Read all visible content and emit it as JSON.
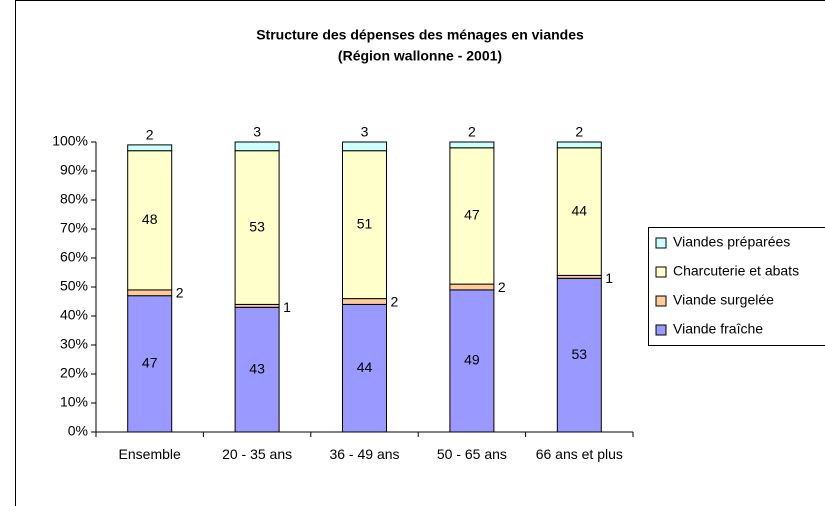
{
  "chart_data": {
    "type": "stacked_bar",
    "title": "Structure des dépenses des ménages en viandes",
    "subtitle": "(Région wallonne - 2001)",
    "categories": [
      "Ensemble",
      "20 - 35 ans",
      "36 - 49 ans",
      "50 - 65 ans",
      "66 ans et plus"
    ],
    "series": [
      {
        "name": "Viande fraîche",
        "color": "#9999ff",
        "values": [
          47,
          43,
          44,
          49,
          53
        ]
      },
      {
        "name": "Viande surgelée",
        "color": "#ffcc99",
        "values": [
          2,
          1,
          2,
          2,
          1
        ]
      },
      {
        "name": "Charcuterie et abats",
        "color": "#ffffcc",
        "values": [
          48,
          53,
          51,
          47,
          44
        ]
      },
      {
        "name": "Viandes préparées",
        "color": "#ccffff",
        "values": [
          2,
          3,
          3,
          2,
          2
        ]
      }
    ],
    "ylim": [
      0,
      100
    ],
    "yticks": [
      {
        "value": 0,
        "label": "0%"
      },
      {
        "value": 10,
        "label": "10%"
      },
      {
        "value": 20,
        "label": "20%"
      },
      {
        "value": 30,
        "label": "30%"
      },
      {
        "value": 40,
        "label": "40%"
      },
      {
        "value": 50,
        "label": "50%"
      },
      {
        "value": 60,
        "label": "60%"
      },
      {
        "value": 70,
        "label": "70%"
      },
      {
        "value": 80,
        "label": "80%"
      },
      {
        "value": 90,
        "label": "90%"
      },
      {
        "value": 100,
        "label": "100%"
      }
    ],
    "legend": "right"
  }
}
